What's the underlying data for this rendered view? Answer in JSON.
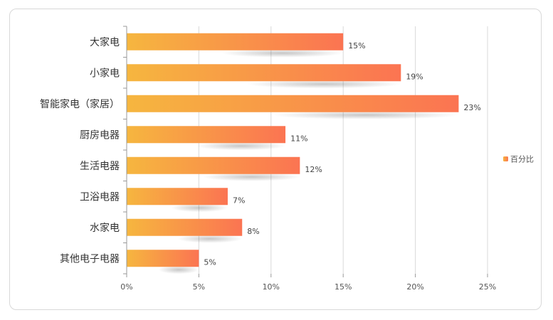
{
  "chart_data": {
    "type": "bar",
    "orientation": "horizontal",
    "categories": [
      "大家电",
      "小家电",
      "智能家电（家居）",
      "厨房电器",
      "生活电器",
      "卫浴电器",
      "水家电",
      "其他电子电器"
    ],
    "series": [
      {
        "name": "百分比",
        "values": [
          15,
          19,
          23,
          11,
          12,
          7,
          8,
          5
        ]
      }
    ],
    "data_labels": [
      "15%",
      "19%",
      "23%",
      "11%",
      "12%",
      "7%",
      "8%",
      "5%"
    ],
    "xlim": [
      0,
      25
    ],
    "x_ticks": [
      "0%",
      "5%",
      "10%",
      "15%",
      "20%",
      "25%"
    ],
    "grid": true,
    "legend": {
      "position": "right",
      "entries": [
        "百分比"
      ]
    },
    "colors": {
      "bar_start": "#f6b63f",
      "bar_end": "#fb7452",
      "grid": "#d9d9d9",
      "axis": "#999999"
    }
  }
}
